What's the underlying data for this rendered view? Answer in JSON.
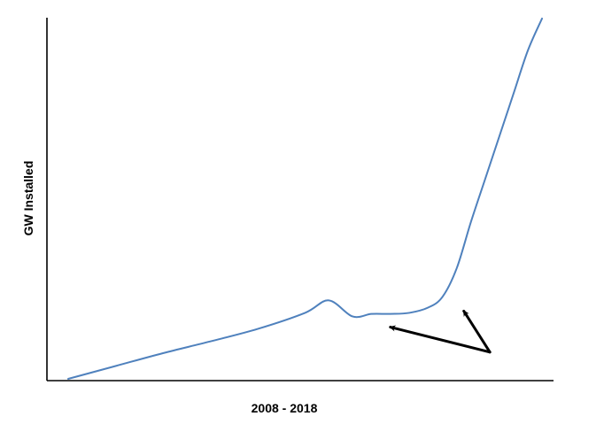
{
  "chart_data": {
    "type": "line",
    "title": "",
    "xlabel": "2008 - 2018",
    "ylabel": "GW Installed",
    "x_ticks": "none",
    "y_ticks": "none",
    "grid": false,
    "legend": "none",
    "xlim": [
      0,
      10
    ],
    "ylim": [
      0,
      100
    ],
    "series": [
      {
        "color": "#4f81bd",
        "x": [
          0.0,
          1.0,
          2.0,
          3.0,
          4.0,
          5.0,
          5.5,
          6.0,
          6.4,
          6.8,
          7.2,
          7.6,
          7.9,
          8.2,
          8.5,
          8.8,
          9.1,
          9.4,
          9.7,
          10.0
        ],
        "y": [
          0.0,
          3.6,
          7.2,
          10.5,
          14.0,
          18.5,
          22.0,
          17.5,
          18.2,
          18.2,
          18.5,
          20.0,
          23.0,
          31.0,
          44.0,
          56.0,
          68.0,
          80.0,
          92.0,
          101.0
        ]
      }
    ],
    "annotations": [
      {
        "type": "arrows",
        "color": "#000000",
        "from": [
          8.9,
          7.5
        ],
        "to": [
          [
            6.8,
            14.5
          ],
          [
            8.35,
            19.0
          ]
        ]
      }
    ]
  }
}
